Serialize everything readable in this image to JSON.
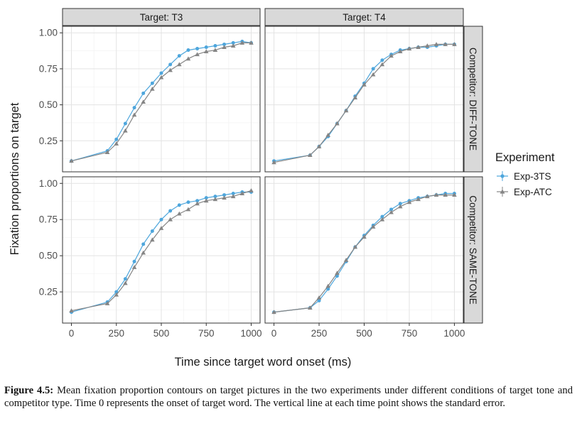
{
  "chart_data": {
    "type": "line",
    "ylabel": "Fixation proportions on target",
    "xlabel": "Time since target word onset (ms)",
    "xlim": [
      0,
      1000
    ],
    "ylim": [
      0.08,
      1.0
    ],
    "xticks": [
      "0",
      "250",
      "500",
      "750",
      "1000"
    ],
    "yticks": [
      "0.25",
      "0.50",
      "0.75",
      "1.00"
    ],
    "grid": true,
    "legend": {
      "title": "Experiment",
      "position": "right"
    },
    "col_labels": [
      "Target: T3",
      "Target: T4"
    ],
    "row_labels": [
      "Competitor: DIFF-TONE",
      "Competitor: SAME-TONE"
    ],
    "x": [
      0,
      200,
      250,
      300,
      350,
      400,
      450,
      500,
      550,
      600,
      650,
      700,
      750,
      800,
      850,
      900,
      950,
      1000
    ],
    "panels": [
      {
        "col": "Target: T3",
        "row": "Competitor: DIFF-TONE",
        "series": [
          {
            "name": "Exp-3TS",
            "color": "#4ea6dc",
            "marker": "circle",
            "values": [
              0.11,
              0.18,
              0.26,
              0.37,
              0.48,
              0.58,
              0.65,
              0.72,
              0.78,
              0.84,
              0.88,
              0.89,
              0.9,
              0.91,
              0.92,
              0.93,
              0.94,
              0.93
            ]
          },
          {
            "name": "Exp-ATC",
            "color": "#858585",
            "marker": "triangle",
            "values": [
              0.11,
              0.17,
              0.23,
              0.32,
              0.43,
              0.52,
              0.61,
              0.69,
              0.74,
              0.78,
              0.82,
              0.85,
              0.87,
              0.88,
              0.9,
              0.91,
              0.93,
              0.93
            ]
          }
        ]
      },
      {
        "col": "Target: T4",
        "row": "Competitor: DIFF-TONE",
        "series": [
          {
            "name": "Exp-3TS",
            "color": "#4ea6dc",
            "marker": "circle",
            "values": [
              0.11,
              0.15,
              0.21,
              0.28,
              0.37,
              0.46,
              0.56,
              0.65,
              0.75,
              0.81,
              0.85,
              0.88,
              0.89,
              0.9,
              0.9,
              0.91,
              0.92,
              0.92
            ]
          },
          {
            "name": "Exp-ATC",
            "color": "#858585",
            "marker": "triangle",
            "values": [
              0.1,
              0.15,
              0.21,
              0.29,
              0.37,
              0.46,
              0.55,
              0.64,
              0.71,
              0.78,
              0.84,
              0.87,
              0.89,
              0.9,
              0.91,
              0.92,
              0.92,
              0.92
            ]
          }
        ]
      },
      {
        "col": "Target: T3",
        "row": "Competitor: SAME-TONE",
        "series": [
          {
            "name": "Exp-3TS",
            "color": "#4ea6dc",
            "marker": "circle",
            "values": [
              0.11,
              0.18,
              0.25,
              0.34,
              0.46,
              0.58,
              0.67,
              0.75,
              0.81,
              0.85,
              0.87,
              0.88,
              0.9,
              0.91,
              0.92,
              0.93,
              0.94,
              0.94
            ]
          },
          {
            "name": "Exp-ATC",
            "color": "#858585",
            "marker": "triangle",
            "values": [
              0.12,
              0.17,
              0.23,
              0.31,
              0.42,
              0.52,
              0.61,
              0.69,
              0.75,
              0.79,
              0.82,
              0.86,
              0.88,
              0.89,
              0.9,
              0.91,
              0.93,
              0.95
            ]
          }
        ]
      },
      {
        "col": "Target: T4",
        "row": "Competitor: SAME-TONE",
        "series": [
          {
            "name": "Exp-3TS",
            "color": "#4ea6dc",
            "marker": "circle",
            "values": [
              0.11,
              0.14,
              0.19,
              0.27,
              0.36,
              0.46,
              0.56,
              0.64,
              0.71,
              0.77,
              0.82,
              0.86,
              0.88,
              0.9,
              0.91,
              0.92,
              0.93,
              0.93
            ]
          },
          {
            "name": "Exp-ATC",
            "color": "#858585",
            "marker": "triangle",
            "values": [
              0.11,
              0.14,
              0.21,
              0.29,
              0.38,
              0.47,
              0.56,
              0.63,
              0.7,
              0.75,
              0.8,
              0.84,
              0.87,
              0.89,
              0.91,
              0.92,
              0.92,
              0.92
            ]
          }
        ]
      }
    ]
  },
  "caption": {
    "label": "Figure 4.5:",
    "text": " Mean fixation proportion contours on target pictures in the two experiments under different conditions of target tone and competitor type. Time 0 represents the onset of target word. The vertical line at each time point shows the standard error."
  }
}
